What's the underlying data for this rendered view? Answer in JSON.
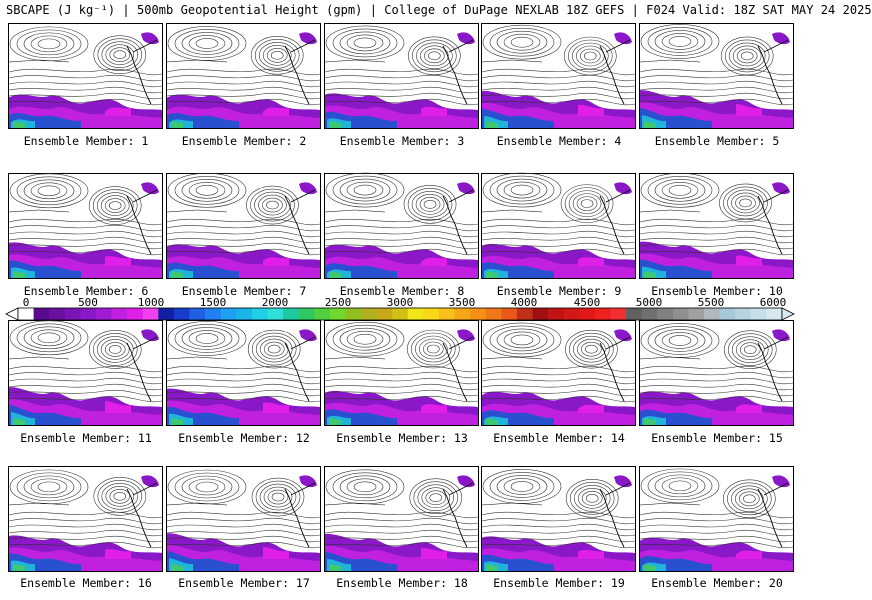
{
  "title": "SBCAPE (J kg⁻¹) | 500mb Geopotential Height (gpm) | College of DuPage NEXLAB 18Z GEFS | F024 Valid: 18Z SAT MAY 24 2025",
  "members": [
    "Ensemble Member: 1",
    "Ensemble Member: 2",
    "Ensemble Member: 3",
    "Ensemble Member: 4",
    "Ensemble Member: 5",
    "Ensemble Member: 6",
    "Ensemble Member: 7",
    "Ensemble Member: 8",
    "Ensemble Member: 9",
    "Ensemble Member: 10",
    "Ensemble Member: 11",
    "Ensemble Member: 12",
    "Ensemble Member: 13",
    "Ensemble Member: 14",
    "Ensemble Member: 15",
    "Ensemble Member: 16",
    "Ensemble Member: 17",
    "Ensemble Member: 18",
    "Ensemble Member: 19",
    "Ensemble Member: 20"
  ],
  "colorbar": {
    "ticks": [
      "0",
      "500",
      "1000",
      "1500",
      "2000",
      "2500",
      "3000",
      "3500",
      "4000",
      "4500",
      "5000",
      "5500",
      "6000"
    ],
    "colors": {
      "low": "#5a0a8c",
      "purple": "#8a18c8",
      "magenta": "#e020e8",
      "blue": "#1a3ccc",
      "cyan": "#1ab4e8",
      "green": "#30c860",
      "yellow": "#f4e41a",
      "orange": "#f49018",
      "red": "#e01818",
      "gray": "#909090",
      "lightblue": "#a8c8d8"
    }
  }
}
